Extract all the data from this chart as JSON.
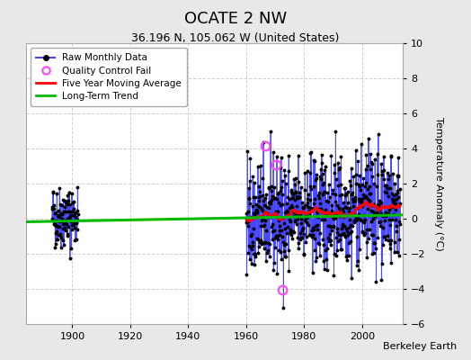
{
  "title": "OCATE 2 NW",
  "subtitle": "36.196 N, 105.062 W (United States)",
  "ylabel": "Temperature Anomaly (°C)",
  "attribution": "Berkeley Earth",
  "ylim": [
    -6,
    10
  ],
  "xlim": [
    1884,
    2014
  ],
  "yticks": [
    -6,
    -4,
    -2,
    0,
    2,
    4,
    6,
    8,
    10
  ],
  "xticks": [
    1900,
    1920,
    1940,
    1960,
    1980,
    2000
  ],
  "background_color": "#e8e8e8",
  "plot_bg_color": "#ffffff",
  "grid_color": "#cccccc",
  "line_color_raw": "#4444ff",
  "dot_color_raw": "#000000",
  "line_color_mavg": "#ff0000",
  "line_color_trend": "#00bb00",
  "qc_fail_color": "#ff44ff",
  "trend_slope": 0.003,
  "trend_intercept": 0.05,
  "seed": 42
}
